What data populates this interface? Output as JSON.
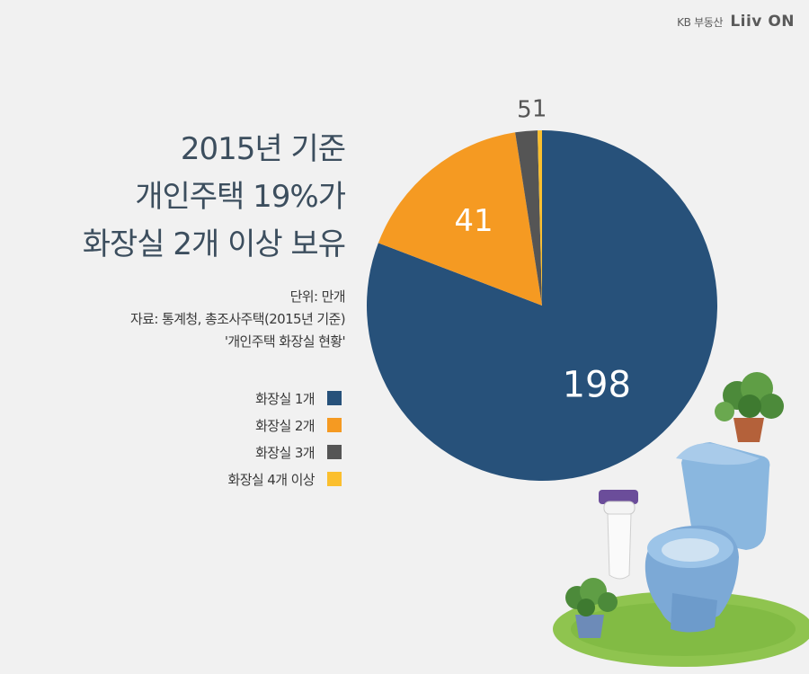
{
  "brand": {
    "company": "KB 부동산",
    "logo_main": "Liiv",
    "logo_sub": "ON"
  },
  "title_lines": [
    "2015년 기준",
    "개인주택 19%가",
    "화장실 2개 이상 보유"
  ],
  "meta": {
    "unit": "단위: 만개",
    "source_line1": "자료: 통계청, 총조사주택(2015년 기준)",
    "source_line2": "'개인주택 화장실 현황'"
  },
  "chart_data": {
    "type": "pie",
    "title": "2015년 기준 개인주택 19%가 화장실 2개 이상 보유",
    "unit": "만개",
    "categories": [
      "화장실 1개",
      "화장실 2개",
      "화장실 3개",
      "화장실 4개 이상"
    ],
    "values": [
      198,
      41,
      5,
      1
    ],
    "data_labels": [
      "198",
      "41",
      "5",
      "1"
    ],
    "colors": [
      "#27517a",
      "#f59a22",
      "#555555",
      "#fbbf2e"
    ],
    "legend_position": "left",
    "start_angle_deg": 0,
    "direction": "clockwise"
  }
}
